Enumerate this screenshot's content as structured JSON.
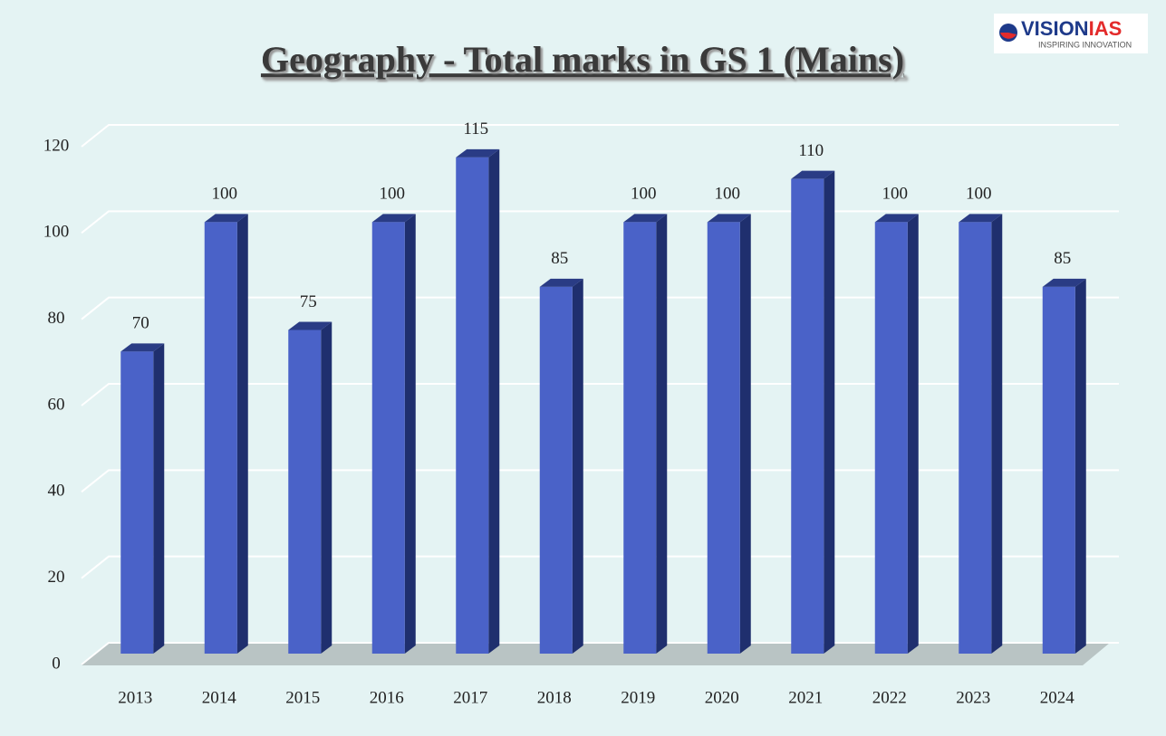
{
  "chart_data": {
    "type": "bar3d",
    "title": "Geography - Total marks in GS 1 (Mains)",
    "categories": [
      "2013",
      "2014",
      "2015",
      "2016",
      "2017",
      "2018",
      "2019",
      "2020",
      "2021",
      "2022",
      "2023",
      "2024"
    ],
    "values": [
      70,
      100,
      75,
      100,
      115,
      85,
      100,
      100,
      110,
      100,
      100,
      85
    ],
    "color": "#4a62c8",
    "ylim": [
      0,
      120
    ],
    "yticks": [
      0,
      20,
      40,
      60,
      80,
      100,
      120
    ],
    "grid": true
  },
  "logo": {
    "brand": "VISION",
    "brand_accent": "IAS",
    "tagline": "INSPIRING INNOVATION"
  }
}
